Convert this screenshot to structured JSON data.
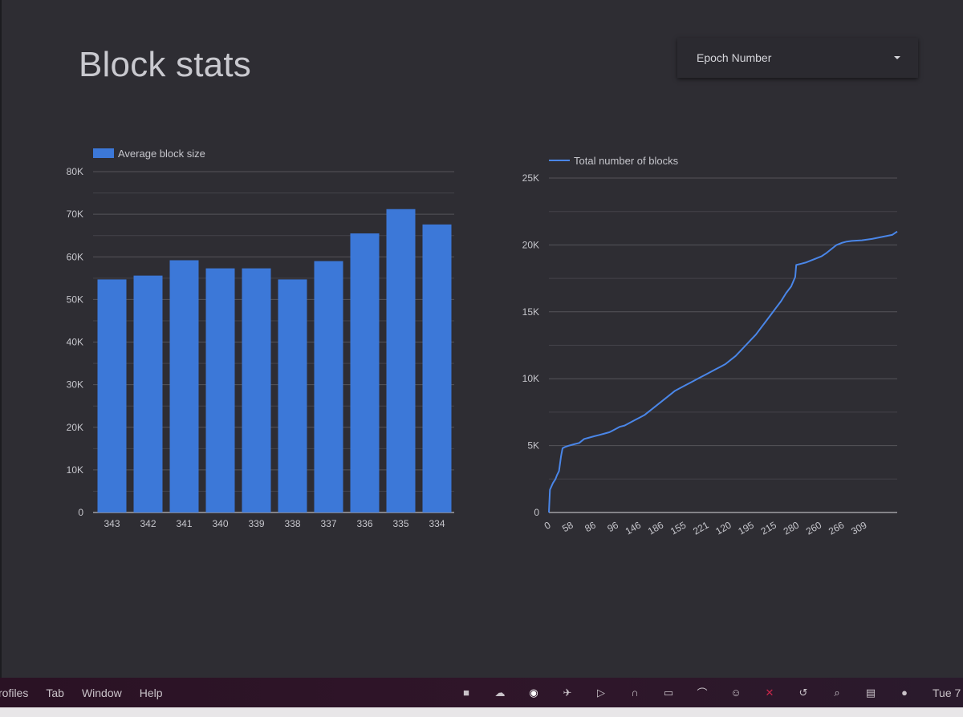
{
  "page": {
    "title": "Block stats"
  },
  "epoch_select": {
    "label": "Epoch Number"
  },
  "chart_data": [
    {
      "type": "bar",
      "legend": "Average block size",
      "categories": [
        "343",
        "342",
        "341",
        "340",
        "339",
        "338",
        "337",
        "336",
        "335",
        "334"
      ],
      "values": [
        54700,
        55600,
        59200,
        57300,
        57300,
        54700,
        59000,
        65500,
        71200,
        67600
      ],
      "ylim": [
        0,
        80000
      ],
      "yticks": [
        "0",
        "10K",
        "20K",
        "30K",
        "40K",
        "50K",
        "60K",
        "70K",
        "80K"
      ],
      "grid": true,
      "legend_position": "top-left",
      "color": "#3c78d8"
    },
    {
      "type": "line",
      "legend": "Total number of blocks",
      "x_tick_labels": [
        "0",
        "58",
        "86",
        "96",
        "146",
        "186",
        "155",
        "221",
        "120",
        "195",
        "215",
        "280",
        "260",
        "266",
        "309"
      ],
      "points": [
        [
          0,
          0
        ],
        [
          0.2,
          1700
        ],
        [
          0.8,
          2200
        ],
        [
          1.3,
          2500
        ],
        [
          1.6,
          2800
        ],
        [
          2,
          3100
        ],
        [
          2.4,
          4200
        ],
        [
          2.7,
          4800
        ],
        [
          3.2,
          4900
        ],
        [
          4,
          5000
        ],
        [
          5,
          5100
        ],
        [
          6,
          5200
        ],
        [
          7,
          5500
        ],
        [
          8,
          5600
        ],
        [
          9,
          5700
        ],
        [
          10,
          5800
        ],
        [
          11,
          5900
        ],
        [
          12,
          6000
        ],
        [
          13,
          6200
        ],
        [
          14,
          6400
        ],
        [
          15,
          6500
        ],
        [
          16,
          6700
        ],
        [
          17,
          6900
        ],
        [
          18,
          7100
        ],
        [
          19,
          7300
        ],
        [
          20,
          7600
        ],
        [
          21,
          7900
        ],
        [
          22,
          8200
        ],
        [
          23,
          8500
        ],
        [
          24,
          8800
        ],
        [
          25,
          9100
        ],
        [
          26,
          9300
        ],
        [
          27,
          9500
        ],
        [
          28,
          9700
        ],
        [
          29,
          9900
        ],
        [
          30,
          10100
        ],
        [
          31,
          10300
        ],
        [
          32,
          10500
        ],
        [
          33,
          10700
        ],
        [
          34,
          10900
        ],
        [
          35,
          11100
        ],
        [
          36,
          11400
        ],
        [
          37,
          11700
        ],
        [
          38,
          12100
        ],
        [
          39,
          12500
        ],
        [
          40,
          12900
        ],
        [
          41,
          13300
        ],
        [
          42,
          13800
        ],
        [
          43,
          14300
        ],
        [
          44,
          14800
        ],
        [
          45,
          15300
        ],
        [
          46,
          15800
        ],
        [
          47,
          16400
        ],
        [
          48,
          16900
        ],
        [
          48.8,
          17600
        ],
        [
          49,
          18500
        ],
        [
          50,
          18600
        ],
        [
          51,
          18700
        ],
        [
          52,
          18850
        ],
        [
          53,
          19000
        ],
        [
          54,
          19150
        ],
        [
          55,
          19400
        ],
        [
          56,
          19700
        ],
        [
          57,
          20000
        ],
        [
          58,
          20150
        ],
        [
          59,
          20250
        ],
        [
          60,
          20300
        ],
        [
          62,
          20350
        ],
        [
          64,
          20450
        ],
        [
          66,
          20600
        ],
        [
          68,
          20750
        ],
        [
          69,
          21000
        ]
      ],
      "ylim": [
        0,
        25000
      ],
      "yticks": [
        "0",
        "5K",
        "10K",
        "15K",
        "20K",
        "25K"
      ],
      "grid": true,
      "legend_position": "top-left",
      "color": "#4a86e8"
    }
  ],
  "menubar": {
    "items": [
      "rofiles",
      "Tab",
      "Window",
      "Help"
    ],
    "tray_icons": [
      "shield-icon",
      "cloud-sync-icon",
      "eye-icon",
      "rocket-icon",
      "play-icon",
      "headphones-icon",
      "battery-icon",
      "wifi-icon",
      "user-icon",
      "flag-icon",
      "history-icon",
      "search-icon",
      "control-center-icon",
      "siri-icon"
    ],
    "clock": "Tue 7"
  }
}
